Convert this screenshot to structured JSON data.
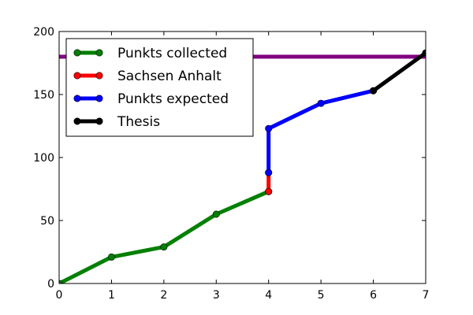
{
  "chart_data": {
    "type": "line",
    "title": "",
    "xlabel": "",
    "ylabel": "",
    "xlim": [
      0,
      7
    ],
    "ylim": [
      0,
      200
    ],
    "xticks": [
      0,
      1,
      2,
      3,
      4,
      5,
      6,
      7
    ],
    "yticks": [
      0,
      50,
      100,
      150,
      200
    ],
    "grid": false,
    "legend_position": "top-left",
    "reference_line": {
      "y": 180,
      "color": "#800080"
    },
    "series": [
      {
        "name": "Punkts collected",
        "color": "#008000",
        "x": [
          0,
          1,
          2,
          3,
          4
        ],
        "y": [
          0,
          21,
          29,
          55,
          73
        ]
      },
      {
        "name": "Sachsen Anhalt",
        "color": "#ff0000",
        "x": [
          4,
          4
        ],
        "y": [
          73,
          88
        ]
      },
      {
        "name": "Punkts expected",
        "color": "#0000ff",
        "x": [
          4,
          4,
          5,
          6
        ],
        "y": [
          88,
          123,
          143,
          153
        ]
      },
      {
        "name": "Thesis",
        "color": "#000000",
        "x": [
          6,
          7
        ],
        "y": [
          153,
          183
        ]
      }
    ]
  }
}
